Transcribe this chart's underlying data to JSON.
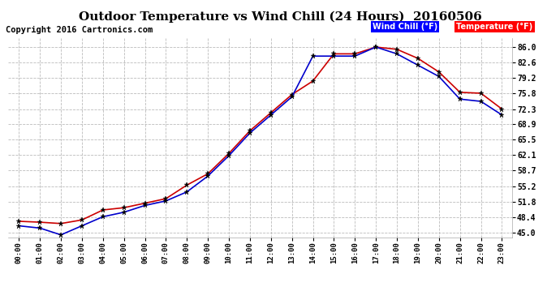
{
  "title": "Outdoor Temperature vs Wind Chill (24 Hours)  20160506",
  "copyright": "Copyright 2016 Cartronics.com",
  "legend_wind_chill": "Wind Chill (°F)",
  "legend_temperature": "Temperature (°F)",
  "hours": [
    "00:00",
    "01:00",
    "02:00",
    "03:00",
    "04:00",
    "05:00",
    "06:00",
    "07:00",
    "08:00",
    "09:00",
    "10:00",
    "11:00",
    "12:00",
    "13:00",
    "14:00",
    "15:00",
    "16:00",
    "17:00",
    "18:00",
    "19:00",
    "20:00",
    "21:00",
    "22:00",
    "23:00"
  ],
  "temperature": [
    47.5,
    47.3,
    47.0,
    47.8,
    50.0,
    50.5,
    51.5,
    52.5,
    55.5,
    58.0,
    62.5,
    67.5,
    71.5,
    75.5,
    78.5,
    84.5,
    84.5,
    86.0,
    85.5,
    83.5,
    80.5,
    76.0,
    75.8,
    72.3
  ],
  "wind_chill": [
    46.5,
    46.0,
    44.5,
    46.5,
    48.5,
    49.5,
    51.0,
    52.0,
    54.0,
    57.5,
    62.0,
    67.0,
    71.0,
    75.0,
    84.0,
    84.0,
    84.0,
    86.0,
    84.5,
    82.0,
    79.5,
    74.5,
    74.0,
    71.0
  ],
  "yticks": [
    45.0,
    48.4,
    51.8,
    55.2,
    58.7,
    62.1,
    65.5,
    68.9,
    72.3,
    75.8,
    79.2,
    82.6,
    86.0
  ],
  "ylim": [
    44.0,
    88.0
  ],
  "temp_color": "#cc0000",
  "wind_color": "#0000cc",
  "background_color": "#ffffff",
  "grid_color": "#bbbbbb",
  "title_fontsize": 11,
  "copyright_fontsize": 7.5
}
